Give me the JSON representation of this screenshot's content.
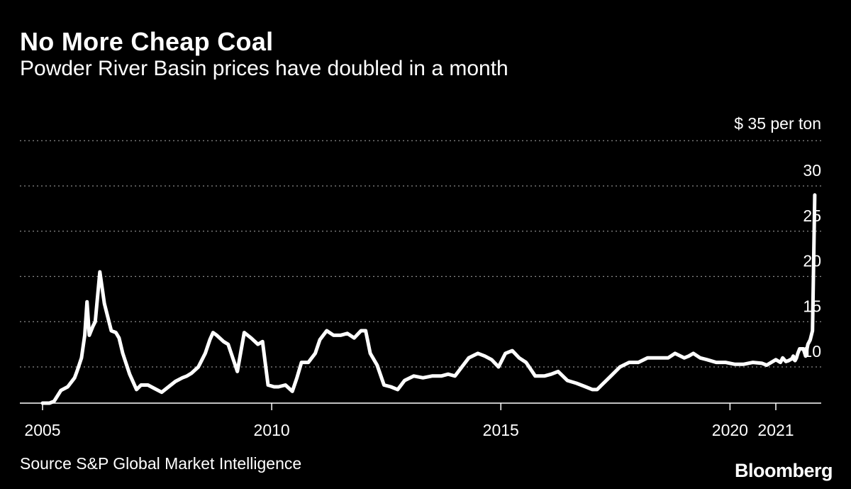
{
  "header": {
    "title": "No More Cheap Coal",
    "subtitle": "Powder River Basin prices have doubled in a month"
  },
  "footer": {
    "source": "Source S&P Global Market Intelligence",
    "brand": "Bloomberg"
  },
  "colors": {
    "background": "#000000",
    "line": "#ffffff",
    "grid": "#8a8a8a"
  },
  "chart_data": {
    "type": "line",
    "title": "No More Cheap Coal",
    "subtitle": "Powder River Basin prices have doubled in a month",
    "ylabel": "",
    "xlabel": "",
    "unit_label": "$ 35 per ton",
    "xlim": [
      2005,
      2022
    ],
    "ylim": [
      6,
      35
    ],
    "y_ticks": [
      10,
      15,
      20,
      25,
      30
    ],
    "y_tick_labels": [
      "10",
      "15",
      "20",
      "25",
      "30"
    ],
    "x_ticks": [
      2005,
      2010,
      2015,
      2020,
      2021
    ],
    "x_tick_labels": [
      "2005",
      "2010",
      "2015",
      "2020",
      "2021"
    ],
    "grid": true,
    "grid_style": "dotted",
    "series": [
      {
        "name": "",
        "x": [
          2005.0,
          2005.15,
          2005.25,
          2005.4,
          2005.55,
          2005.7,
          2005.75,
          2005.85,
          2005.92,
          2005.97,
          2006.02,
          2006.1,
          2006.15,
          2006.25,
          2006.35,
          2006.5,
          2006.6,
          2006.67,
          2006.75,
          2006.9,
          2007.05,
          2007.15,
          2007.3,
          2007.45,
          2007.6,
          2007.75,
          2007.9,
          2008.05,
          2008.15,
          2008.25,
          2008.4,
          2008.55,
          2008.65,
          2008.72,
          2008.8,
          2008.95,
          2009.05,
          2009.15,
          2009.25,
          2009.4,
          2009.55,
          2009.7,
          2009.8,
          2009.92,
          2010.05,
          2010.15,
          2010.3,
          2010.45,
          2010.55,
          2010.65,
          2010.8,
          2010.95,
          2011.05,
          2011.2,
          2011.35,
          2011.5,
          2011.65,
          2011.8,
          2011.95,
          2012.05,
          2012.15,
          2012.3,
          2012.45,
          2012.6,
          2012.75,
          2012.9,
          2013.1,
          2013.3,
          2013.5,
          2013.7,
          2013.85,
          2014.0,
          2014.15,
          2014.3,
          2014.5,
          2014.65,
          2014.8,
          2014.95,
          2015.1,
          2015.25,
          2015.4,
          2015.55,
          2015.75,
          2015.95,
          2016.1,
          2016.25,
          2016.45,
          2016.65,
          2016.85,
          2017.0,
          2017.1,
          2017.2,
          2017.4,
          2017.6,
          2017.8,
          2018.0,
          2018.2,
          2018.4,
          2018.55,
          2018.65,
          2018.8,
          2019.0,
          2019.1,
          2019.2,
          2019.35,
          2019.5,
          2019.7,
          2019.9,
          2020.1,
          2020.3,
          2020.5,
          2020.7,
          2020.8,
          2020.9,
          2021.0,
          2021.1,
          2021.15,
          2021.22,
          2021.28,
          2021.35,
          2021.38,
          2021.4,
          2021.42,
          2021.45,
          2021.48,
          2021.52,
          2021.6,
          2021.65,
          2021.7,
          2021.75,
          2021.8,
          2021.85
        ],
        "y": [
          6.0,
          6.0,
          6.2,
          7.4,
          7.8,
          8.8,
          9.5,
          11.0,
          13.5,
          17.2,
          13.5,
          14.5,
          15.0,
          20.5,
          17.0,
          14.0,
          13.8,
          13.2,
          11.5,
          9.2,
          7.5,
          8.0,
          8.0,
          7.6,
          7.2,
          7.8,
          8.4,
          8.8,
          9.0,
          9.3,
          10.0,
          11.5,
          13.0,
          13.8,
          13.5,
          12.8,
          12.5,
          11.0,
          9.5,
          13.8,
          13.2,
          12.5,
          12.8,
          8.0,
          7.8,
          7.8,
          8.0,
          7.3,
          8.8,
          10.5,
          10.5,
          11.5,
          13.0,
          14.0,
          13.5,
          13.5,
          13.7,
          13.2,
          14.0,
          14.0,
          11.5,
          10.2,
          8.0,
          7.8,
          7.5,
          8.5,
          9.0,
          8.8,
          9.0,
          9.0,
          9.2,
          9.0,
          10.0,
          11.0,
          11.5,
          11.2,
          10.8,
          10.0,
          11.5,
          11.8,
          11.0,
          10.5,
          9.0,
          9.0,
          9.2,
          9.5,
          8.5,
          8.2,
          7.8,
          7.5,
          7.5,
          8.0,
          9.0,
          10.0,
          10.5,
          10.5,
          11.0,
          11.0,
          11.0,
          11.0,
          11.5,
          11.0,
          11.2,
          11.5,
          11.0,
          10.8,
          10.5,
          10.5,
          10.3,
          10.3,
          10.5,
          10.4,
          10.2,
          10.5,
          10.8,
          10.5,
          11.0,
          10.6,
          10.7,
          10.9,
          11.2,
          10.8,
          10.7,
          11.0,
          11.5,
          12.0,
          12.0,
          11.2,
          12.5,
          13.0,
          14.0,
          29.0
        ]
      }
    ]
  }
}
